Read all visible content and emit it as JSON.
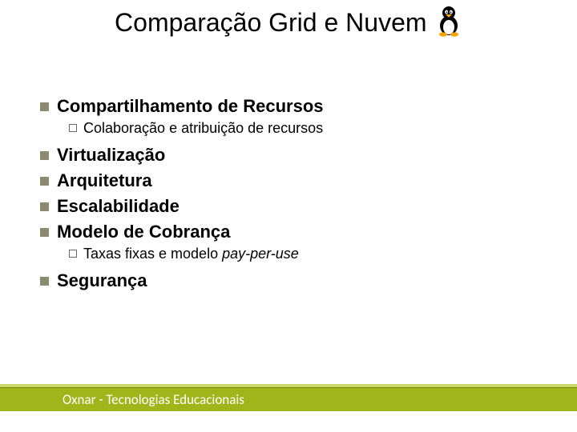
{
  "title": "Comparação Grid e Nuvem",
  "items": [
    {
      "label": "Compartilhamento de Recursos",
      "sub": [
        "Colaboração e atribuição de recursos"
      ]
    },
    {
      "label": "Virtualização"
    },
    {
      "label": "Arquitetura"
    },
    {
      "label": "Escalabilidade"
    },
    {
      "label": "Modelo de Cobrança",
      "sub_html": [
        "Taxas fixas e modelo <em>pay-per-use</em>"
      ]
    },
    {
      "label": "Segurança"
    }
  ],
  "footer": "Oxnar - Tecnologias Educacionais",
  "colors": {
    "bullet_square": "#8a8a70",
    "footer_bar": "#9fb61a",
    "footer_stripe": "#c9d86a"
  },
  "logo": {
    "name": "tux-penguin-icon"
  }
}
